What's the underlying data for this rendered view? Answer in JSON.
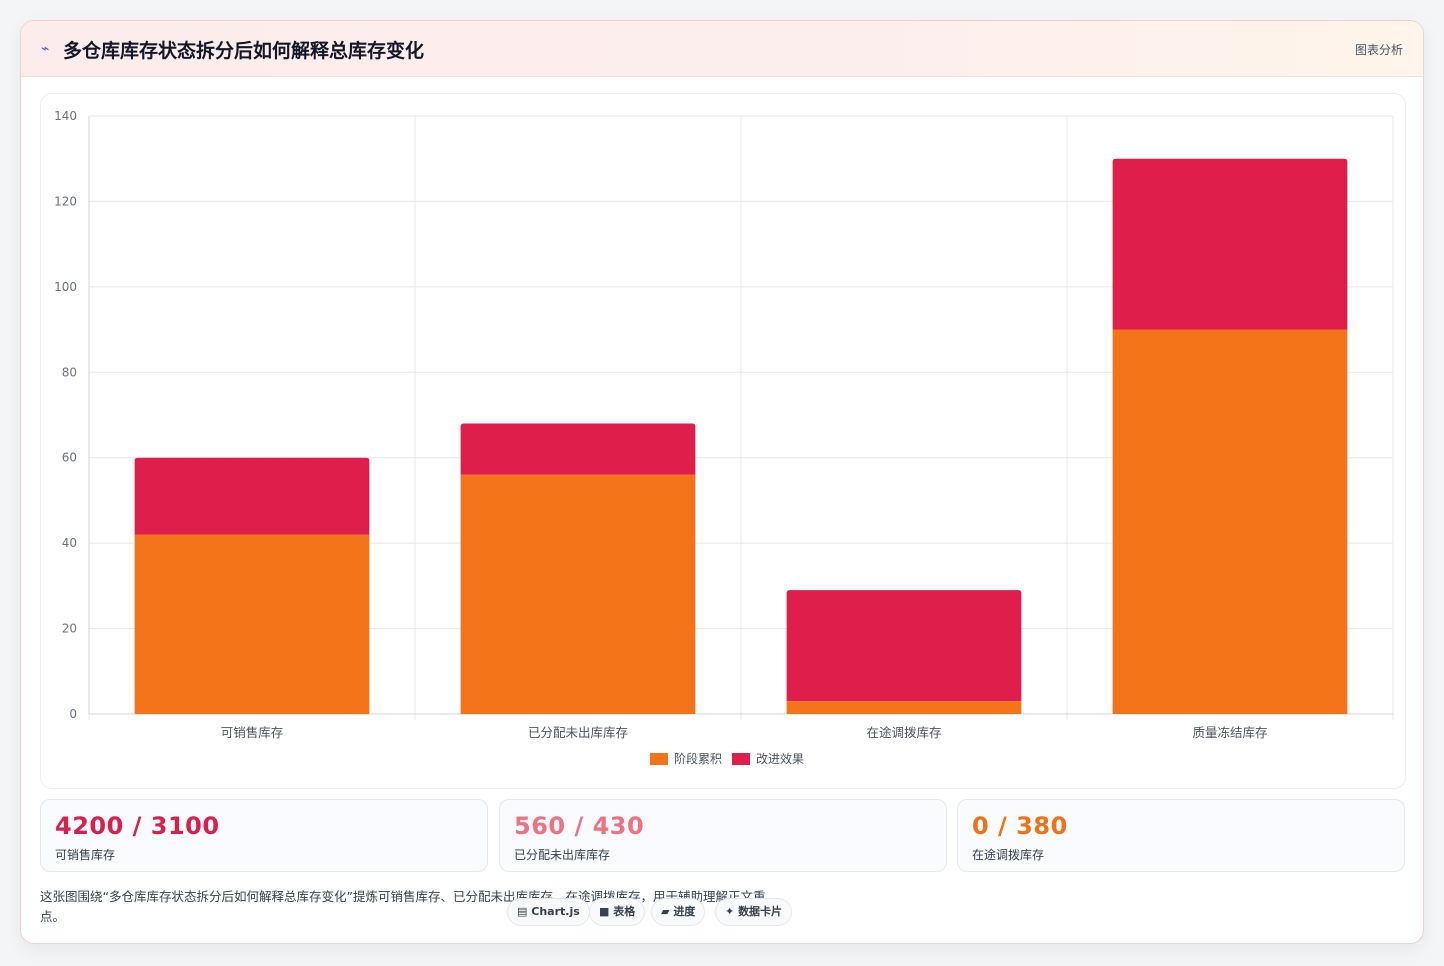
{
  "header": {
    "icon": "line-chart-icon",
    "title": "多仓库库存状态拆分后如何解释总库存变化",
    "tag": "图表分析"
  },
  "chart_data": {
    "type": "bar",
    "stacked": true,
    "categories": [
      "可销售库存",
      "已分配未出库库存",
      "在途调拨库存",
      "质量冻结库存"
    ],
    "series": [
      {
        "name": "阶段累积",
        "values": [
          42,
          56,
          3,
          90
        ],
        "color": "#f47419"
      },
      {
        "name": "改进效果",
        "values": [
          18,
          12,
          26,
          40
        ],
        "color": "#e01e4b"
      }
    ],
    "ylim": [
      0,
      140
    ],
    "yticks": [
      0,
      20,
      40,
      60,
      80,
      100,
      120,
      140
    ],
    "grid": true,
    "legend": "bottom"
  },
  "stats": [
    {
      "value": "4200 / 3100",
      "label": "可销售库存",
      "color": "#dc1e48"
    },
    {
      "value": "560 / 430",
      "label": "已分配未出库库存",
      "color": "#f0717f"
    },
    {
      "value": "0 / 380",
      "label": "在途调拨库存",
      "color": "#f07214"
    }
  ],
  "footer": {
    "text": "这张图围绕“多仓库库存状态拆分后如何解释总库存变化”提炼可销售库存、已分配未出库库存、在途调拨库存，用于辅助理解正文重点。",
    "chips": [
      {
        "icon": "table-icon",
        "glyph": "▤",
        "label": "Chart.js"
      },
      {
        "icon": "square-icon",
        "glyph": "■",
        "label": "表格"
      },
      {
        "icon": "progress-icon",
        "glyph": "▰",
        "label": "进度"
      },
      {
        "icon": "sparkle-icon",
        "glyph": "✦",
        "label": "数据卡片"
      }
    ]
  }
}
